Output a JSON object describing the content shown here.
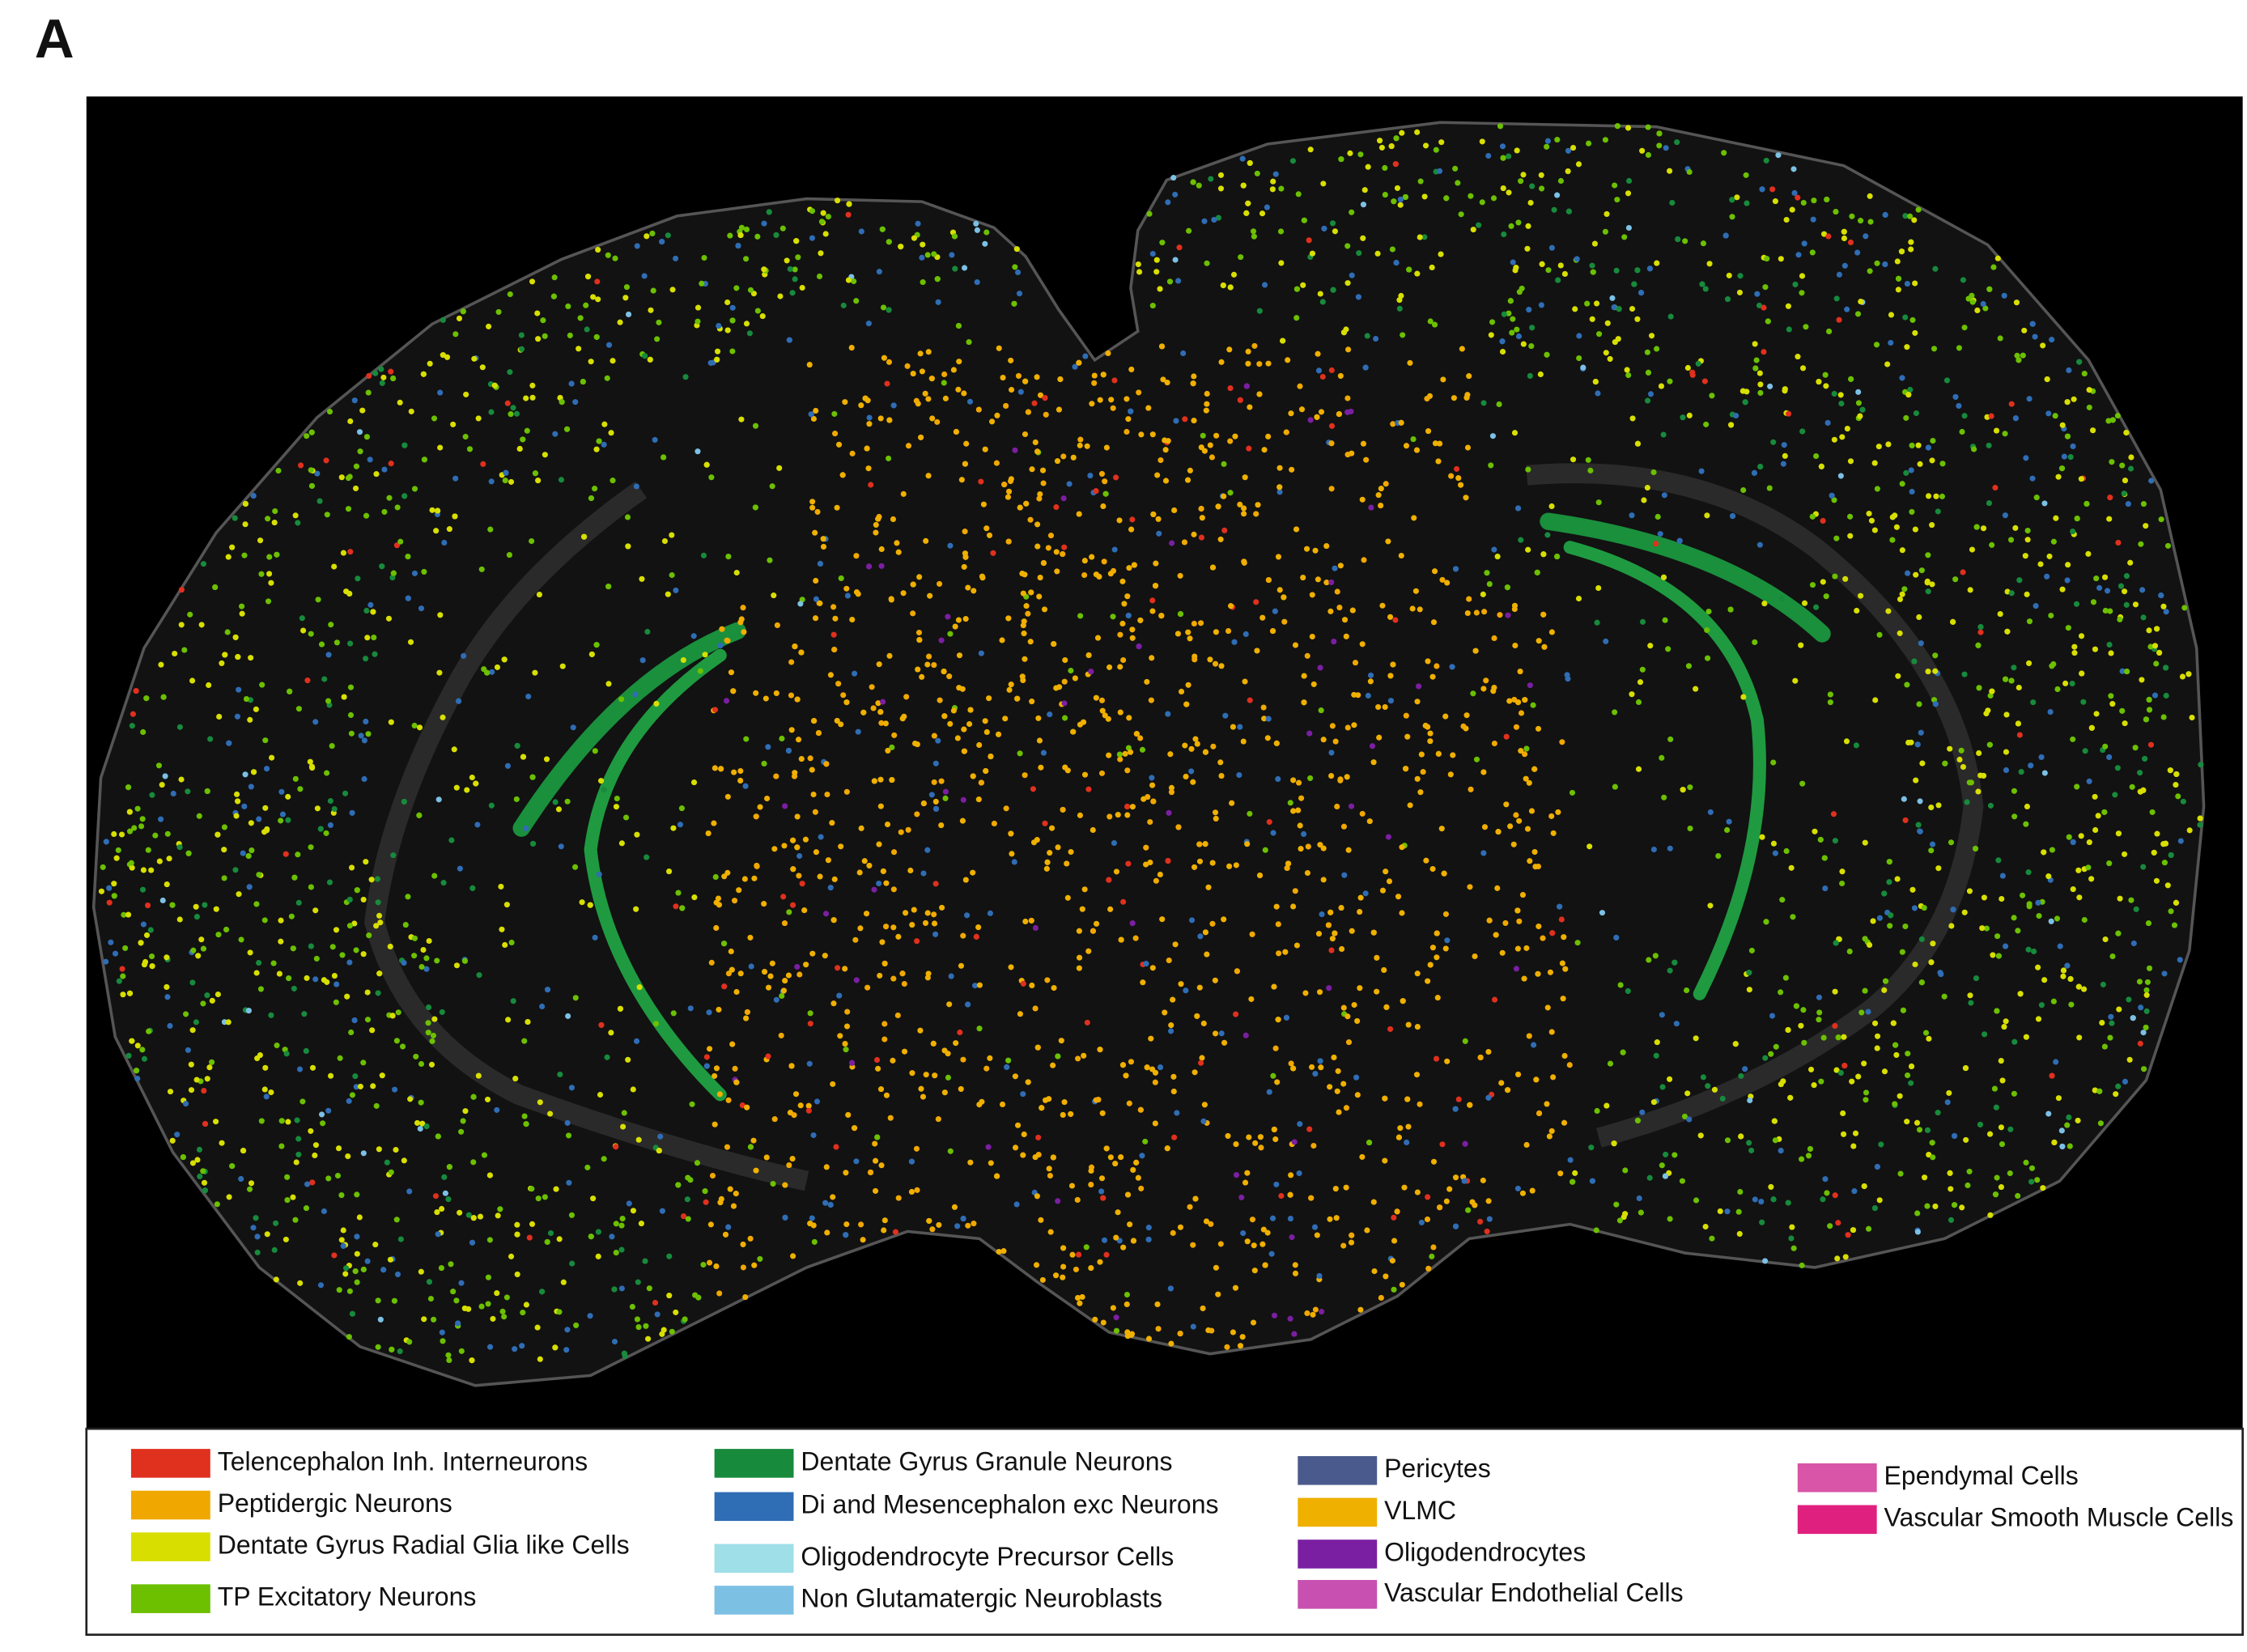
{
  "panel_label": "A",
  "legend": {
    "columns": [
      {
        "items": [
          {
            "label": "Telencephalon Inh. Interneurons",
            "color": "#e0301e"
          },
          {
            "label": "Peptidergic Neurons",
            "color": "#f0a800"
          },
          {
            "label": "Dentate Gyrus Radial Glia like Cells",
            "color": "#d8df00"
          },
          {
            "label": "TP Excitatory Neurons",
            "color": "#6cc000"
          }
        ]
      },
      {
        "items": [
          {
            "label": "Dentate Gyrus Granule Neurons",
            "color": "#178a3c"
          },
          {
            "label": "Di and Mesencephalon exc Neurons",
            "color": "#2f6db5"
          },
          {
            "label": "Oligodendrocyte Precursor Cells",
            "color": "#9edfe8"
          },
          {
            "label": "Non Glutamatergic Neuroblasts",
            "color": "#7cc0e4"
          }
        ]
      },
      {
        "items": [
          {
            "label": "Pericytes",
            "color": "#4a5a8c"
          },
          {
            "label": "VLMC",
            "color": "#f0b000"
          },
          {
            "label": "Oligodendrocytes",
            "color": "#7b1fa2"
          },
          {
            "label": "Vascular Endothelial Cells",
            "color": "#c850b0"
          }
        ]
      },
      {
        "items": [
          {
            "label": "Ependymal Cells",
            "color": "#d855a8"
          },
          {
            "label": "Vascular Smooth Muscle Cells",
            "color": "#e0207f"
          }
        ]
      }
    ]
  }
}
